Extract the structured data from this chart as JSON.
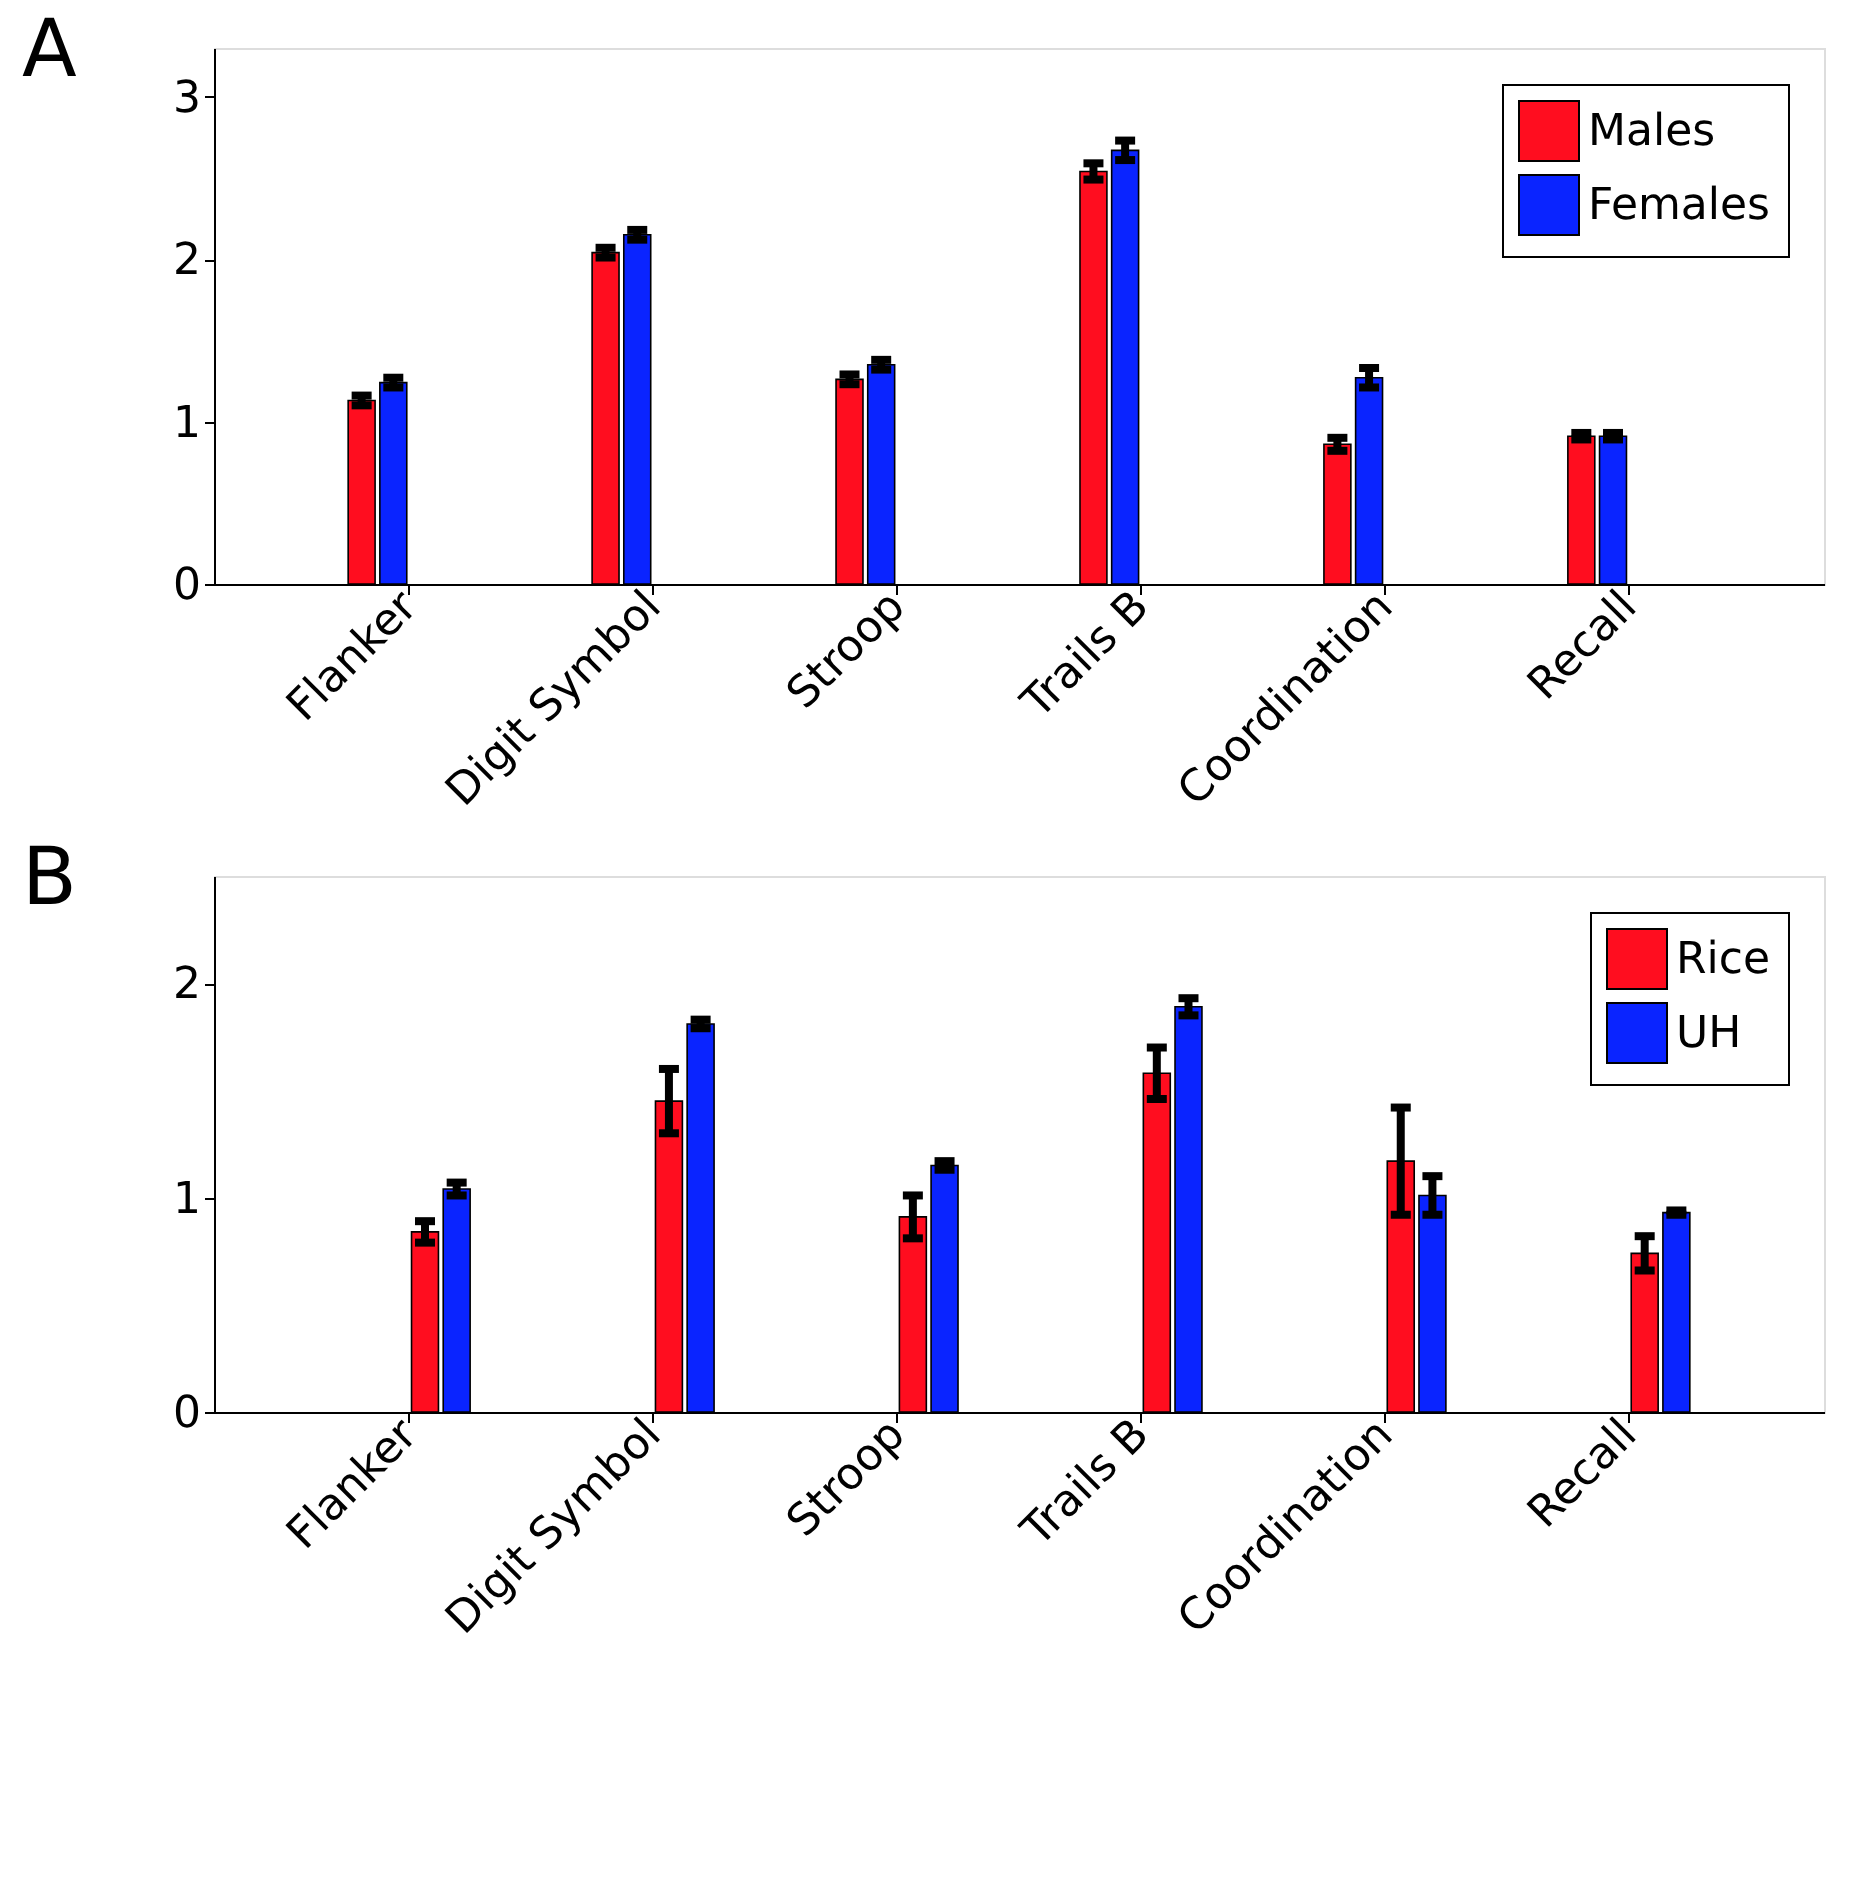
{
  "chart_data": [
    {
      "type": "bar",
      "title": "A",
      "categories": [
        "Flanker",
        "Digit Symbol",
        "Stroop",
        "Trails B",
        "Coordination",
        "Recall"
      ],
      "ylim": [
        0,
        3.3
      ],
      "yticks": [
        {
          "value": 0,
          "label": "0"
        },
        {
          "value": 1,
          "label": "1"
        },
        {
          "value": 2,
          "label": "2"
        },
        {
          "value": 3,
          "label": "3"
        }
      ],
      "grid": false,
      "legend": "top right",
      "series": [
        {
          "name": "Males",
          "color": "#ff0d1f",
          "values": [
            1.13,
            2.04,
            1.26,
            2.54,
            0.86,
            0.91
          ],
          "errors": [
            0.03,
            0.03,
            0.03,
            0.05,
            0.04,
            0.02
          ]
        },
        {
          "name": "Females",
          "color": "#0a24ff",
          "values": [
            1.24,
            2.15,
            1.35,
            2.67,
            1.27,
            0.91
          ],
          "errors": [
            0.03,
            0.03,
            0.03,
            0.06,
            0.06,
            0.02
          ]
        }
      ]
    },
    {
      "type": "bar",
      "title": "B",
      "categories": [
        "Flanker",
        "Digit Symbol",
        "Stroop",
        "Trails B",
        "Coordination",
        "Recall"
      ],
      "ylim": [
        0,
        2.5
      ],
      "yticks": [
        {
          "value": 0,
          "label": "0"
        },
        {
          "value": 1,
          "label": "1"
        },
        {
          "value": 2,
          "label": "2"
        }
      ],
      "grid": false,
      "legend": "top right",
      "series": [
        {
          "name": "Rice",
          "color": "#ff0d1f",
          "values": [
            0.84,
            1.45,
            0.91,
            1.58,
            1.17,
            0.74
          ],
          "errors": [
            0.05,
            0.15,
            0.1,
            0.12,
            0.25,
            0.08
          ]
        },
        {
          "name": "UH",
          "color": "#0a24ff",
          "values": [
            1.04,
            1.81,
            1.15,
            1.89,
            1.01,
            0.93
          ],
          "errors": [
            0.03,
            0.02,
            0.02,
            0.04,
            0.09,
            0.01
          ]
        }
      ]
    }
  ]
}
